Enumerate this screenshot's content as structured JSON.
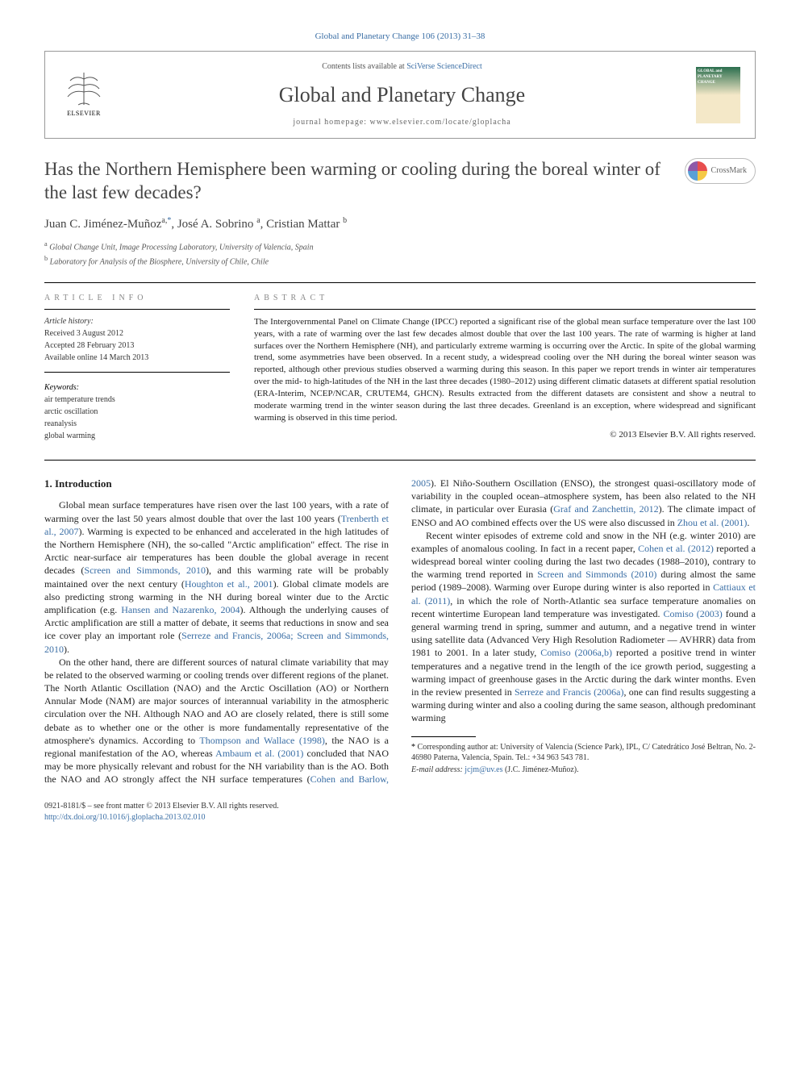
{
  "top_link": "Global and Planetary Change 106 (2013) 31–38",
  "header": {
    "contents_prefix": "Contents lists available at ",
    "contents_link": "SciVerse ScienceDirect",
    "journal_name": "Global and Planetary Change",
    "homepage_label": "journal homepage: www.elsevier.com/locate/gloplacha",
    "publisher_label": "ELSEVIER"
  },
  "crossmark_label": "CrossMark",
  "article": {
    "title": "Has the Northern Hemisphere been warming or cooling during the boreal winter of the last few decades?",
    "authors_html": "Juan C. Jiménez-Muñoz",
    "author1_sup": "a,",
    "author1_ast": "*",
    "author2": ", José A. Sobrino ",
    "author2_sup": "a",
    "author3": ", Cristian Mattar ",
    "author3_sup": "b",
    "affiliations": [
      {
        "sup": "a",
        "text": " Global Change Unit, Image Processing Laboratory, University of Valencia, Spain"
      },
      {
        "sup": "b",
        "text": " Laboratory for Analysis of the Biosphere, University of Chile, Chile"
      }
    ]
  },
  "info_heading": "article info",
  "abstract_heading": "abstract",
  "history": {
    "label": "Article history:",
    "received": "Received 3 August 2012",
    "accepted": "Accepted 28 February 2013",
    "online": "Available online 14 March 2013"
  },
  "keywords": {
    "label": "Keywords:",
    "items": [
      "air temperature trends",
      "arctic oscillation",
      "reanalysis",
      "global warming"
    ]
  },
  "abstract_text": "The Intergovernmental Panel on Climate Change (IPCC) reported a significant rise of the global mean surface temperature over the last 100 years, with a rate of warming over the last few decades almost double that over the last 100 years. The rate of warming is higher at land surfaces over the Northern Hemisphere (NH), and particularly extreme warming is occurring over the Arctic. In spite of the global warming trend, some asymmetries have been observed. In a recent study, a widespread cooling over the NH during the boreal winter season was reported, although other previous studies observed a warming during this season. In this paper we report trends in winter air temperatures over the mid- to high-latitudes of the NH in the last three decades (1980–2012) using different climatic datasets at different spatial resolution (ERA-Interim, NCEP/NCAR, CRUTEM4, GHCN). Results extracted from the different datasets are consistent and show a neutral to moderate warming trend in the winter season during the last three decades. Greenland is an exception, where widespread and significant warming is observed in this time period.",
  "copyright": "© 2013 Elsevier B.V. All rights reserved.",
  "intro_heading": "1. Introduction",
  "intro_paragraphs": [
    "Global mean surface temperatures have risen over the last 100 years, with a rate of warming over the last 50 years almost double that over the last 100 years (|Trenberth et al., 2007|). Warming is expected to be enhanced and accelerated in the high latitudes of the Northern Hemisphere (NH), the so-called \"Arctic amplification\" effect. The rise in Arctic near-surface air temperatures has been double the global average in recent decades (|Screen and Simmonds, 2010|), and this warming rate will be probably maintained over the next century (|Houghton et al., 2001|). Global climate models are also predicting strong warming in the NH during boreal winter due to the Arctic amplification (e.g. |Hansen and Nazarenko, 2004|). Although the underlying causes of Arctic amplification are still a matter of debate, it seems that reductions in snow and sea ice cover play an important role (|Serreze and Francis, 2006a; Screen and Simmonds, 2010|).",
    "On the other hand, there are different sources of natural climate variability that may be related to the observed warming or cooling trends over different regions of the planet. The North Atlantic Oscillation (NAO) and the Arctic Oscillation (AO) or Northern Annular Mode (NAM) are major sources of interannual variability in the atmospheric circulation over the NH. Although NAO and AO are closely related, there is still some debate as to whether one or the other is more fundamentally representative of the atmosphere's dynamics. According to |Thompson and Wallace (1998)|, the NAO is a regional manifestation of the AO, whereas |Ambaum et al. (2001)| concluded that NAO may be more physically relevant and robust for the NH variability than is the AO. Both the NAO and AO strongly affect the NH surface temperatures (|Cohen and Barlow, 2005|). El Niño-Southern Oscillation (ENSO), the strongest quasi-oscillatory mode of variability in the coupled ocean–atmosphere system, has been also related to the NH climate, in particular over Eurasia (|Graf and Zanchettin, 2012|). The climate impact of ENSO and AO combined effects over the US were also discussed in |Zhou et al. (2001)|.",
    "Recent winter episodes of extreme cold and snow in the NH (e.g. winter 2010) are examples of anomalous cooling. In fact in a recent paper, |Cohen et al. (2012)| reported a widespread boreal winter cooling during the last two decades (1988–2010), contrary to the warming trend reported in |Screen and Simmonds (2010)| during almost the same period (1989–2008). Warming over Europe during winter is also reported in |Cattiaux et al. (2011)|, in which the role of North-Atlantic sea surface temperature anomalies on recent wintertime European land temperature was investigated. |Comiso (2003)| found a general warming trend in spring, summer and autumn, and a negative trend in winter using satellite data (Advanced Very High Resolution Radiometer — AVHRR) data from 1981 to 2001. In a later study, |Comiso (2006a,b)| reported a positive trend in winter temperatures and a negative trend in the length of the ice growth period, suggesting a warming impact of greenhouse gases in the Arctic during the dark winter months. Even in the review presented in |Serreze and Francis (2006a)|, one can find results suggesting a warming during winter and also a cooling during the same season, although predominant warming"
  ],
  "corr": {
    "ast": "*",
    "text": " Corresponding author at: University of Valencia (Science Park), IPL, C/ Catedrático José Beltran, No. 2-46980 Paterna, Valencia, Spain. Tel.: +34 963 543 781.",
    "email_label": "E-mail address: ",
    "email": "jcjm@uv.es",
    "email_suffix": " (J.C. Jiménez-Muñoz)."
  },
  "footer": {
    "issn": "0921-8181/$ – see front matter © 2013 Elsevier B.V. All rights reserved.",
    "doi": "http://dx.doi.org/10.1016/j.gloplacha.2013.02.010"
  },
  "colors": {
    "link": "#3a6ea5",
    "text": "#222222",
    "rule": "#000000"
  }
}
